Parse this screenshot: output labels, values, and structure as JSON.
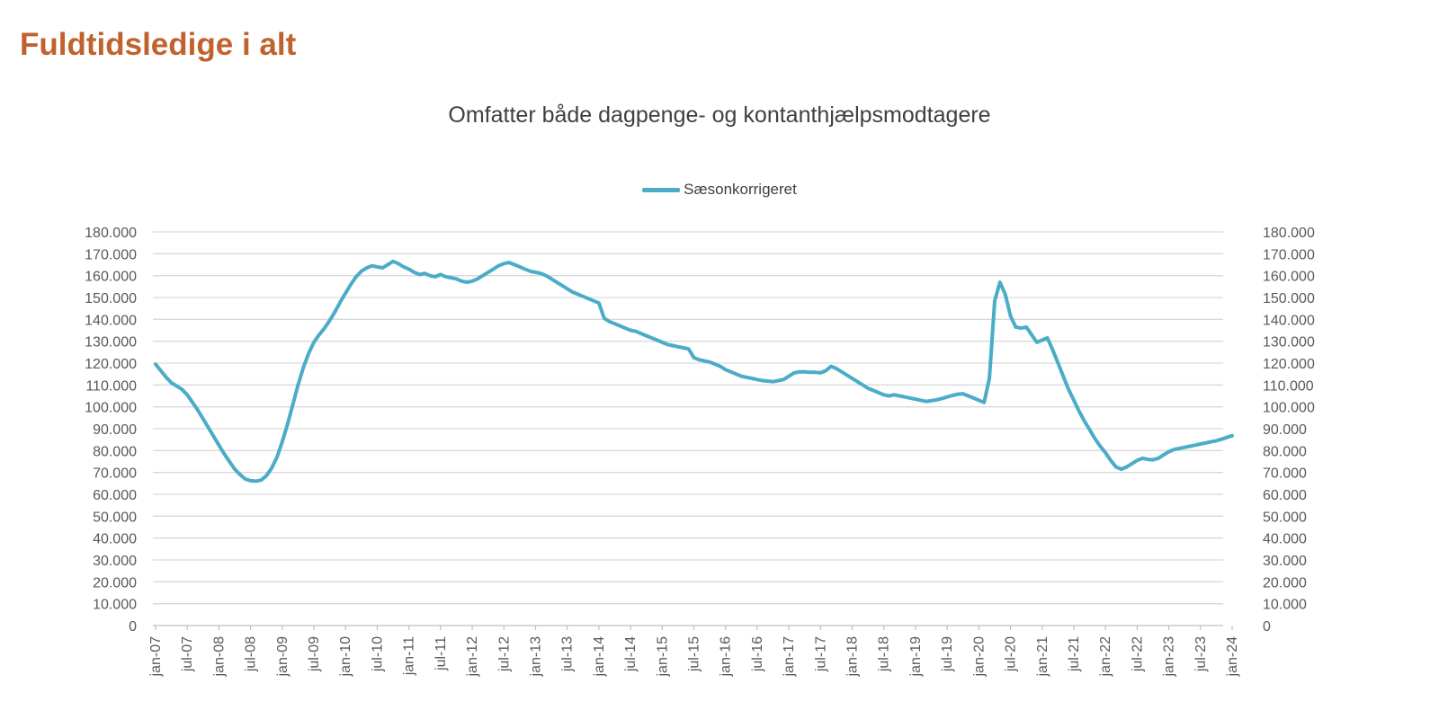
{
  "page": {
    "title": "Fuldtidsledige i alt"
  },
  "colors": {
    "title": "#C0622E",
    "subtitle": "#404040",
    "axis_text": "#595959",
    "gridline": "#D9D9D9",
    "axis_line": "#BFBFBF",
    "series": "#4BACC6",
    "background": "#FFFFFF"
  },
  "chart_data": {
    "type": "line",
    "title": "Omfatter både dagpenge- og kontanthjælpsmodtagere",
    "legend": {
      "position": "top-center",
      "entries": [
        {
          "label": "Sæsonkorrigeret",
          "color": "#4BACC6"
        }
      ]
    },
    "grid": "horizontal",
    "y_axis": {
      "min": 0,
      "max": 180000,
      "step": 10000,
      "sides": [
        "left",
        "right"
      ],
      "tick_labels": [
        "0",
        "10.000",
        "20.000",
        "30.000",
        "40.000",
        "50.000",
        "60.000",
        "70.000",
        "80.000",
        "90.000",
        "100.000",
        "110.000",
        "120.000",
        "130.000",
        "140.000",
        "150.000",
        "160.000",
        "170.000",
        "180.000"
      ]
    },
    "x_axis": {
      "frequency": "monthly",
      "first_month": "jan-07",
      "last_month": "jan-24",
      "tick_labels": [
        "jan-07",
        "jul-07",
        "jan-08",
        "jul-08",
        "jan-09",
        "jul-09",
        "jan-10",
        "jul-10",
        "jan-11",
        "jul-11",
        "jan-12",
        "jul-12",
        "jan-13",
        "jul-13",
        "jan-14",
        "jul-14",
        "jan-15",
        "jul-15",
        "jan-16",
        "jul-16",
        "jan-17",
        "jul-17",
        "jan-18",
        "jul-18",
        "jan-19",
        "jul-19",
        "jan-20",
        "jul-20",
        "jan-21",
        "jul-21",
        "jan-22",
        "jul-22",
        "jan-23",
        "jul-23",
        "jan-24"
      ]
    },
    "series": [
      {
        "name": "Sæsonkorrigeret",
        "color": "#4BACC6",
        "values": [
          119500,
          116500,
          113500,
          111000,
          109500,
          108000,
          105500,
          102000,
          98500,
          94500,
          90500,
          86500,
          82500,
          78500,
          75000,
          71500,
          69000,
          67000,
          66200,
          66000,
          66500,
          68500,
          72000,
          77000,
          84000,
          92000,
          101000,
          110000,
          118000,
          124500,
          129500,
          133000,
          136000,
          139500,
          143500,
          148000,
          152000,
          156000,
          159500,
          162000,
          163500,
          164500,
          164000,
          163500,
          165000,
          166500,
          165500,
          164000,
          163000,
          161500,
          160500,
          161000,
          160000,
          159500,
          160500,
          159500,
          159000,
          158500,
          157500,
          157000,
          157500,
          158500,
          160000,
          161500,
          163000,
          164500,
          165500,
          166000,
          165000,
          164000,
          163000,
          162000,
          161500,
          161000,
          160000,
          158500,
          157000,
          155500,
          154000,
          152500,
          151500,
          150500,
          149500,
          148500,
          147500,
          140500,
          139000,
          138000,
          137000,
          136000,
          135000,
          134500,
          133500,
          132500,
          131500,
          130500,
          129500,
          128500,
          128000,
          127500,
          127000,
          126500,
          122500,
          121500,
          121000,
          120500,
          119500,
          118500,
          117000,
          116000,
          115000,
          114000,
          113500,
          113000,
          112500,
          112000,
          111800,
          111500,
          112000,
          112500,
          114000,
          115500,
          116000,
          116000,
          115800,
          115800,
          115500,
          116500,
          118500,
          117500,
          116000,
          114500,
          113000,
          111500,
          110000,
          108500,
          107500,
          106500,
          105500,
          105000,
          105500,
          105000,
          104500,
          104000,
          103500,
          103000,
          102500,
          102800,
          103200,
          103800,
          104500,
          105200,
          105800,
          106000,
          105000,
          104000,
          103000,
          102000,
          113000,
          148500,
          157000,
          151500,
          141500,
          136500,
          136000,
          136500,
          133000,
          129500,
          130500,
          131500,
          126000,
          120000,
          114000,
          108000,
          103000,
          98000,
          93500,
          89500,
          85500,
          82000,
          79000,
          75500,
          72500,
          71500,
          72500,
          74000,
          75500,
          76500,
          76000,
          75800,
          76500,
          78000,
          79500,
          80500,
          81000,
          81500,
          82000,
          82500,
          83000,
          83500,
          84000,
          84500,
          85200,
          86000,
          86800
        ]
      }
    ]
  }
}
